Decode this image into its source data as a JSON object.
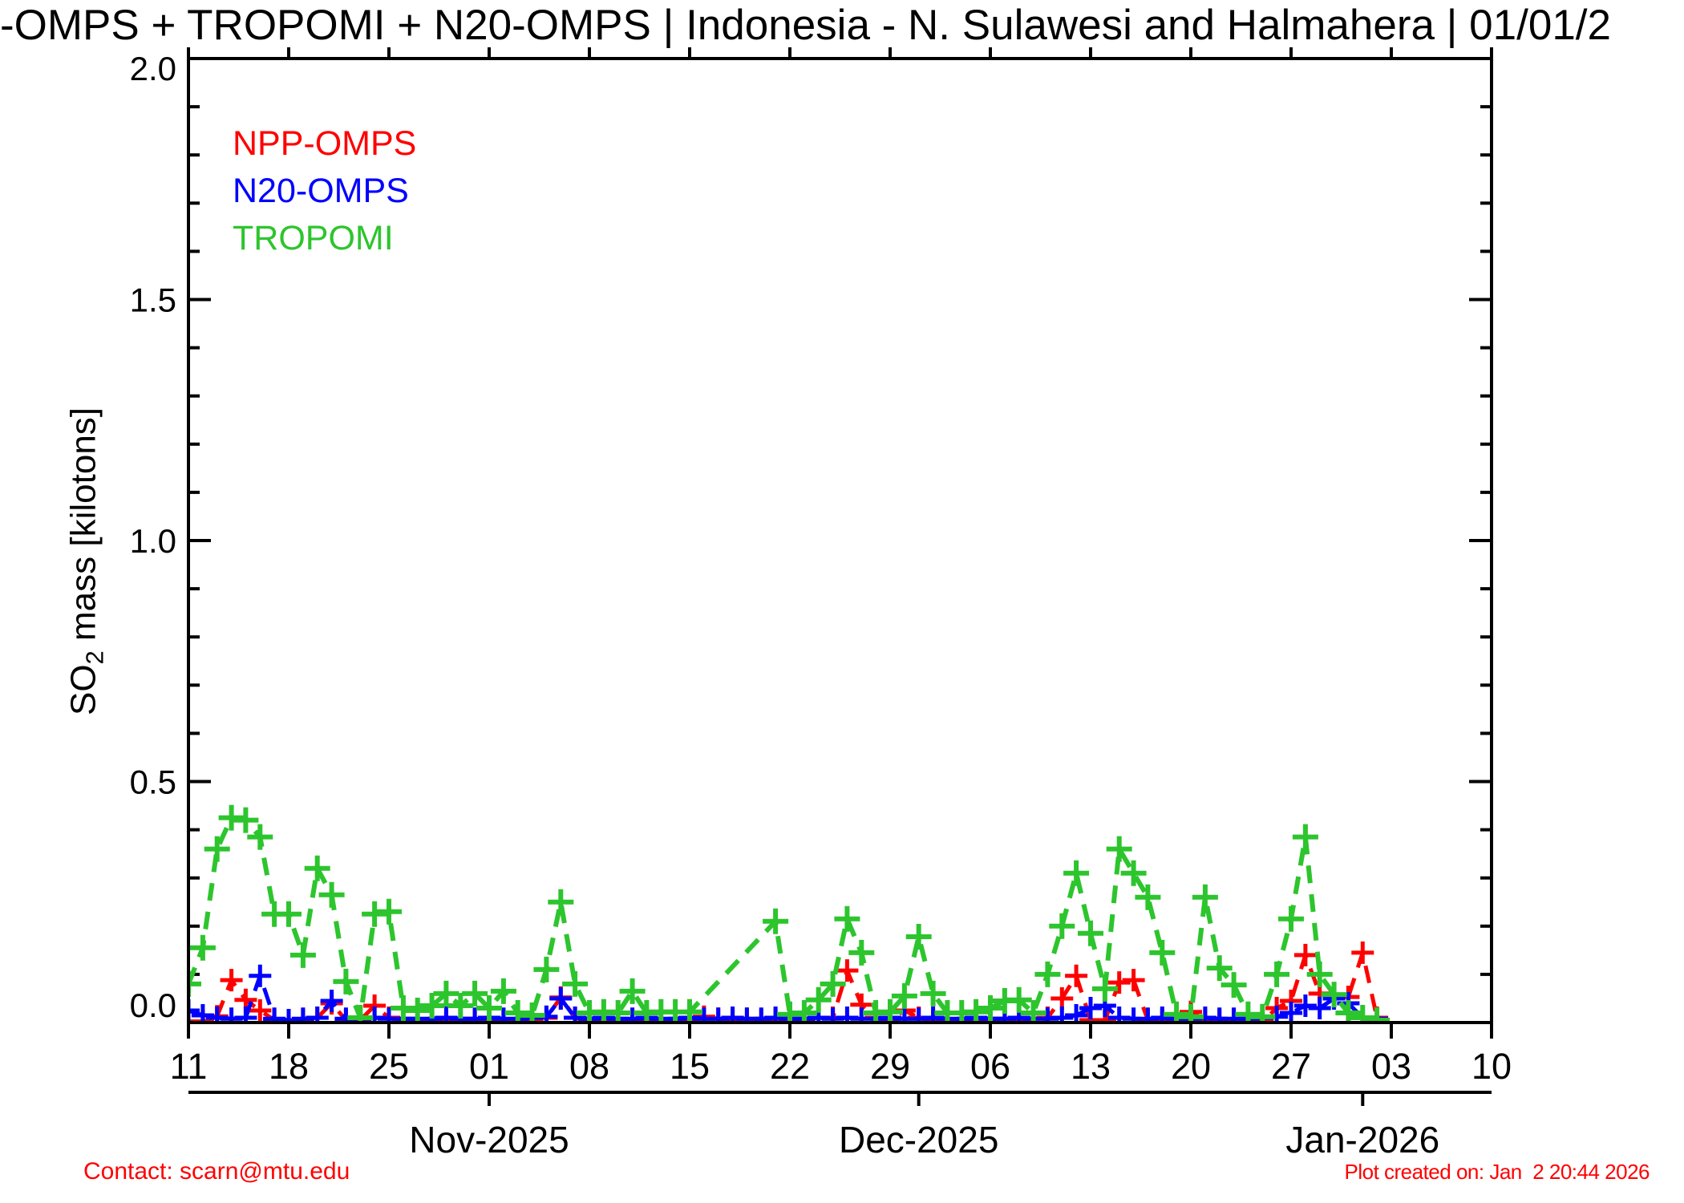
{
  "title": "-OMPS + TROPOMI + N20-OMPS | Indonesia - N. Sulawesi and Halmahera | 01/01/2",
  "y_axis": {
    "label_prefix": "SO",
    "label_sub": "2",
    "label_suffix": " mass [kilotons]"
  },
  "legend": [
    {
      "label": "NPP-OMPS",
      "color": "#ff0000"
    },
    {
      "label": "N20-OMPS",
      "color": "#0000ff"
    },
    {
      "label": "TROPOMI",
      "color": "#2dc52d"
    }
  ],
  "footer": {
    "contact": "Contact: scarn@mtu.edu",
    "created": "Plot created on: Jan  2 20:44 2026"
  },
  "chart_data": {
    "type": "line",
    "title": "-OMPS + TROPOMI + N20-OMPS | Indonesia - N. Sulawesi and Halmahera | 01/01/2",
    "xlabel": "",
    "ylabel": "SO2 mass [kilotons]",
    "ylim": [
      0.0,
      2.0
    ],
    "y_tick_values": [
      0.0,
      0.5,
      1.0,
      1.5,
      2.0
    ],
    "y_tick_labels": [
      "0.0",
      "0.5",
      "1.0",
      "1.5",
      "2.0"
    ],
    "y_minor_step": 0.1,
    "grid": false,
    "legend_position": "top-left",
    "marker": "plus",
    "linestyle": "dashed",
    "x_day0_date": "2025-10-11",
    "x_range_days": 91,
    "x_tick_step_days": 7,
    "x_tick_labels": [
      "11",
      "18",
      "25",
      "01",
      "08",
      "15",
      "22",
      "29",
      "06",
      "13",
      "20",
      "27",
      "03",
      "10"
    ],
    "month_axis": [
      {
        "label": "Nov-2025",
        "day": 21
      },
      {
        "label": "Dec-2025",
        "day": 51
      },
      {
        "label": "Jan-2026",
        "day": 82
      }
    ],
    "units": "kilotons of SO2, x = days since 2025-10-11",
    "series": [
      {
        "name": "NPP-OMPS",
        "color": "#ff0000",
        "points": [
          [
            0,
            0.002
          ],
          [
            1,
            0.002
          ],
          [
            2,
            0.013
          ],
          [
            3,
            0.088
          ],
          [
            4,
            0.047
          ],
          [
            5,
            0.025
          ],
          [
            6,
            0.005
          ],
          [
            7,
            0.005
          ],
          [
            8,
            0.005
          ],
          [
            9,
            0.01
          ],
          [
            10,
            0.04
          ],
          [
            11,
            0.005
          ],
          [
            12,
            0.005
          ],
          [
            13,
            0.035
          ],
          [
            14,
            0.01
          ],
          [
            15,
            0.005
          ],
          [
            16,
            0.002
          ],
          [
            17,
            0.002
          ],
          [
            18,
            0.002
          ],
          [
            19,
            0.002
          ],
          [
            20,
            0.002
          ],
          [
            21,
            0.002
          ],
          [
            22,
            0.005
          ],
          [
            23,
            0.002
          ],
          [
            24,
            0.002
          ],
          [
            25,
            0.01
          ],
          [
            26,
            0.052
          ],
          [
            27,
            0.01
          ],
          [
            28,
            0.002
          ],
          [
            29,
            0.002
          ],
          [
            30,
            0.005
          ],
          [
            31,
            0.005
          ],
          [
            32,
            0.002
          ],
          [
            33,
            0.002
          ],
          [
            34,
            0.005
          ],
          [
            35,
            0.005
          ],
          [
            36,
            0.012
          ],
          [
            37,
            0.008
          ],
          [
            38,
            0.005
          ],
          [
            39,
            0.008
          ],
          [
            40,
            0.005
          ],
          [
            41,
            0.005
          ],
          [
            42,
            0.005
          ],
          [
            43,
            0.005
          ],
          [
            44,
            0.01
          ],
          [
            45,
            0.01
          ],
          [
            46,
            0.108
          ],
          [
            47,
            0.037
          ],
          [
            48,
            0.01
          ],
          [
            49,
            0.005
          ],
          [
            50,
            0.025
          ],
          [
            51,
            0.01
          ],
          [
            52,
            0.005
          ],
          [
            53,
            0.005
          ],
          [
            54,
            0.005
          ],
          [
            55,
            0.005
          ],
          [
            56,
            0.005
          ],
          [
            57,
            0.008
          ],
          [
            58,
            0.005
          ],
          [
            59,
            0.008
          ],
          [
            60,
            0.01
          ],
          [
            61,
            0.05
          ],
          [
            62,
            0.097
          ],
          [
            63,
            0.005
          ],
          [
            64,
            0.005
          ],
          [
            65,
            0.083
          ],
          [
            66,
            0.088
          ],
          [
            67,
            0.005
          ],
          [
            68,
            0.005
          ],
          [
            69,
            0.005
          ],
          [
            70,
            0.022
          ],
          [
            71,
            0.005
          ],
          [
            72,
            0.005
          ],
          [
            73,
            0.005
          ],
          [
            74,
            0.002
          ],
          [
            75,
            0.002
          ],
          [
            76,
            0.03
          ],
          [
            77,
            0.045
          ],
          [
            78,
            0.14
          ],
          [
            79,
            0.06
          ],
          [
            80,
            0.055
          ],
          [
            81,
            0.053
          ],
          [
            82,
            0.145
          ],
          [
            83,
            0.01
          ]
        ]
      },
      {
        "name": "N20-OMPS",
        "color": "#0000ff",
        "points": [
          [
            0,
            0.025
          ],
          [
            1,
            0.015
          ],
          [
            2,
            0.01
          ],
          [
            3,
            0.008
          ],
          [
            4,
            0.01
          ],
          [
            5,
            0.097
          ],
          [
            6,
            0.008
          ],
          [
            7,
            0.005
          ],
          [
            8,
            0.008
          ],
          [
            9,
            0.01
          ],
          [
            10,
            0.045
          ],
          [
            11,
            0.008
          ],
          [
            12,
            0.008
          ],
          [
            13,
            0.01
          ],
          [
            14,
            0.008
          ],
          [
            15,
            0.008
          ],
          [
            16,
            0.008
          ],
          [
            17,
            0.008
          ],
          [
            18,
            0.01
          ],
          [
            19,
            0.008
          ],
          [
            20,
            0.008
          ],
          [
            21,
            0.01
          ],
          [
            22,
            0.008
          ],
          [
            23,
            0.008
          ],
          [
            24,
            0.01
          ],
          [
            25,
            0.012
          ],
          [
            26,
            0.05
          ],
          [
            27,
            0.01
          ],
          [
            28,
            0.008
          ],
          [
            29,
            0.01
          ],
          [
            30,
            0.008
          ],
          [
            31,
            0.008
          ],
          [
            32,
            0.01
          ],
          [
            33,
            0.008
          ],
          [
            34,
            0.008
          ],
          [
            35,
            0.01
          ],
          [
            36,
            0.008
          ],
          [
            37,
            0.008
          ],
          [
            38,
            0.01
          ],
          [
            39,
            0.008
          ],
          [
            40,
            0.008
          ],
          [
            41,
            0.01
          ],
          [
            42,
            0.008
          ],
          [
            43,
            0.008
          ],
          [
            44,
            0.01
          ],
          [
            45,
            0.008
          ],
          [
            46,
            0.01
          ],
          [
            47,
            0.008
          ],
          [
            48,
            0.008
          ],
          [
            49,
            0.01
          ],
          [
            50,
            0.008
          ],
          [
            51,
            0.008
          ],
          [
            52,
            0.01
          ],
          [
            53,
            0.008
          ],
          [
            54,
            0.008
          ],
          [
            55,
            0.01
          ],
          [
            56,
            0.008
          ],
          [
            57,
            0.008
          ],
          [
            58,
            0.01
          ],
          [
            59,
            0.008
          ],
          [
            60,
            0.008
          ],
          [
            61,
            0.01
          ],
          [
            62,
            0.015
          ],
          [
            63,
            0.03
          ],
          [
            64,
            0.035
          ],
          [
            65,
            0.01
          ],
          [
            66,
            0.008
          ],
          [
            67,
            0.008
          ],
          [
            68,
            0.01
          ],
          [
            69,
            0.008
          ],
          [
            70,
            0.008
          ],
          [
            71,
            0.01
          ],
          [
            72,
            0.008
          ],
          [
            73,
            0.008
          ],
          [
            74,
            0.008
          ],
          [
            75,
            0.01
          ],
          [
            76,
            0.012
          ],
          [
            77,
            0.02
          ],
          [
            78,
            0.035
          ],
          [
            79,
            0.03
          ],
          [
            80,
            0.05
          ],
          [
            81,
            0.04
          ],
          [
            82,
            0.01
          ],
          [
            83,
            0.008
          ]
        ]
      },
      {
        "name": "TROPOMI",
        "color": "#2dc52d",
        "points": [
          [
            0,
            0.08
          ],
          [
            1,
            0.155
          ],
          [
            2,
            0.36
          ],
          [
            3,
            0.425
          ],
          [
            4,
            0.42
          ],
          [
            5,
            0.385
          ],
          [
            6,
            0.225
          ],
          [
            7,
            0.225
          ],
          [
            8,
            0.14
          ],
          [
            9,
            0.32
          ],
          [
            10,
            0.265
          ],
          [
            11,
            0.085
          ],
          [
            12,
            0.01
          ],
          [
            13,
            0.225
          ],
          [
            14,
            0.23
          ],
          [
            15,
            0.03
          ],
          [
            16,
            0.025
          ],
          [
            17,
            0.035
          ],
          [
            18,
            0.06
          ],
          [
            19,
            0.035
          ],
          [
            20,
            0.06
          ],
          [
            21,
            0.03
          ],
          [
            22,
            0.065
          ],
          [
            23,
            0.02
          ],
          [
            24,
            0.015
          ],
          [
            25,
            0.11
          ],
          [
            26,
            0.25
          ],
          [
            27,
            0.08
          ],
          [
            28,
            0.02
          ],
          [
            29,
            0.022
          ],
          [
            30,
            0.02
          ],
          [
            31,
            0.065
          ],
          [
            32,
            0.02
          ],
          [
            33,
            0.022
          ],
          [
            34,
            0.022
          ],
          [
            35,
            0.022
          ],
          [
            41,
            0.21
          ],
          [
            42,
            0.017
          ],
          [
            43,
            0.02
          ],
          [
            44,
            0.047
          ],
          [
            45,
            0.08
          ],
          [
            46,
            0.215
          ],
          [
            47,
            0.145
          ],
          [
            48,
            0.02
          ],
          [
            49,
            0.022
          ],
          [
            50,
            0.055
          ],
          [
            51,
            0.178
          ],
          [
            52,
            0.06
          ],
          [
            53,
            0.02
          ],
          [
            54,
            0.02
          ],
          [
            55,
            0.022
          ],
          [
            56,
            0.03
          ],
          [
            57,
            0.045
          ],
          [
            58,
            0.047
          ],
          [
            59,
            0.02
          ],
          [
            60,
            0.1
          ],
          [
            61,
            0.2
          ],
          [
            62,
            0.31
          ],
          [
            63,
            0.185
          ],
          [
            64,
            0.07
          ],
          [
            65,
            0.36
          ],
          [
            66,
            0.31
          ],
          [
            67,
            0.26
          ],
          [
            68,
            0.145
          ],
          [
            69,
            0.017
          ],
          [
            70,
            0.012
          ],
          [
            71,
            0.26
          ],
          [
            72,
            0.113
          ],
          [
            73,
            0.078
          ],
          [
            74,
            0.017
          ],
          [
            75,
            0.012
          ],
          [
            76,
            0.1
          ],
          [
            77,
            0.215
          ],
          [
            78,
            0.385
          ],
          [
            79,
            0.1
          ],
          [
            80,
            0.058
          ],
          [
            81,
            0.02
          ],
          [
            82,
            0.01
          ],
          [
            83,
            0.005
          ]
        ]
      }
    ]
  }
}
